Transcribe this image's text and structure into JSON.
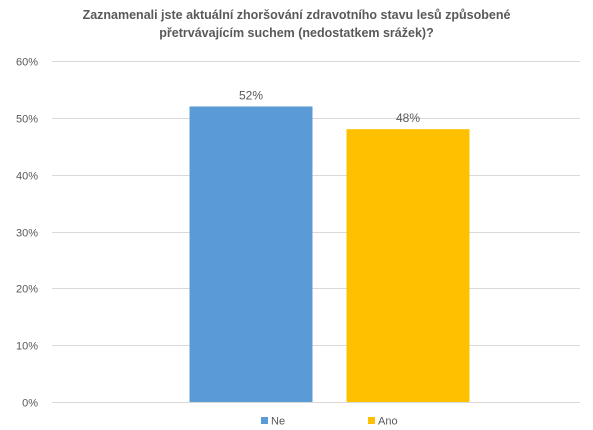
{
  "chart_data": {
    "type": "bar",
    "title_lines": [
      "Zaznamenali jste aktuální zhoršování zdravotního stavu lesů způsobené",
      "přetrvávajícím suchem (nedostatkem srážek)?"
    ],
    "categories": [
      "Ne",
      "Ano"
    ],
    "values": [
      52,
      48
    ],
    "data_labels": [
      "52%",
      "48%"
    ],
    "colors": [
      "#5B9BD5",
      "#FFC000"
    ],
    "y_ticks": [
      "0%",
      "10%",
      "20%",
      "30%",
      "40%",
      "50%",
      "60%"
    ],
    "ylim": [
      0,
      60
    ],
    "grid": true,
    "legend": {
      "position": "bottom",
      "entries": [
        {
          "label": "Ne",
          "color": "#5B9BD5"
        },
        {
          "label": "Ano",
          "color": "#FFC000"
        }
      ]
    },
    "style": {
      "text_color": "#595959",
      "grid_color": "#D9D9D9"
    }
  }
}
